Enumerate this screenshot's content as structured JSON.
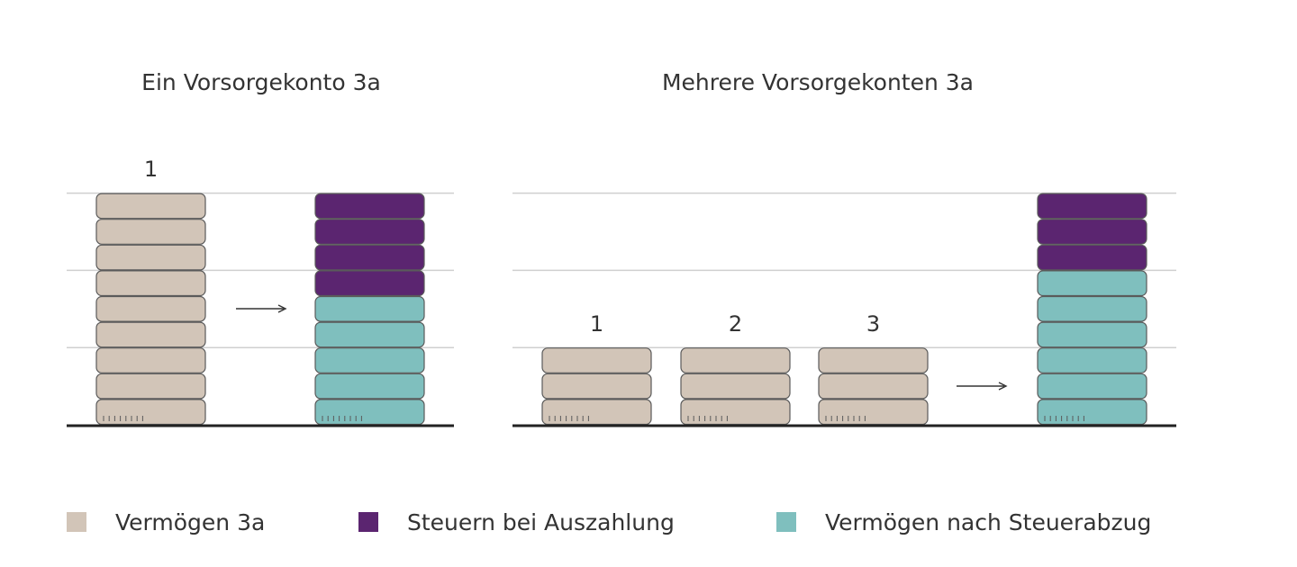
{
  "colors": {
    "assets": "#d2c5b8",
    "taxes": "#5b2570",
    "after_tax": "#7fbfbe",
    "grid": "#cfcfcf",
    "baseline": "#222222",
    "outline": "#5a5a5a"
  },
  "panels": [
    {
      "title": "Ein Vorsorgekonto 3a",
      "gridlines": [
        3,
        6,
        9
      ],
      "stacks": [
        {
          "label": "1",
          "segments": [
            {
              "type": "assets",
              "count": 9
            }
          ]
        }
      ],
      "result": {
        "segments": [
          {
            "type": "after_tax",
            "count": 5
          },
          {
            "type": "taxes",
            "count": 4
          }
        ]
      }
    },
    {
      "title": "Mehrere Vorsorgekonten 3a",
      "gridlines": [
        3,
        6,
        9
      ],
      "stacks": [
        {
          "label": "1",
          "segments": [
            {
              "type": "assets",
              "count": 3
            }
          ]
        },
        {
          "label": "2",
          "segments": [
            {
              "type": "assets",
              "count": 3
            }
          ]
        },
        {
          "label": "3",
          "segments": [
            {
              "type": "assets",
              "count": 3
            }
          ]
        }
      ],
      "result": {
        "segments": [
          {
            "type": "after_tax",
            "count": 6
          },
          {
            "type": "taxes",
            "count": 3
          }
        ]
      }
    }
  ],
  "legend": [
    {
      "key": "assets",
      "label": "Vermögen 3a"
    },
    {
      "key": "taxes",
      "label": "Steuern bei Auszahlung"
    },
    {
      "key": "after_tax",
      "label": "Vermögen nach Steuerabzug"
    }
  ]
}
